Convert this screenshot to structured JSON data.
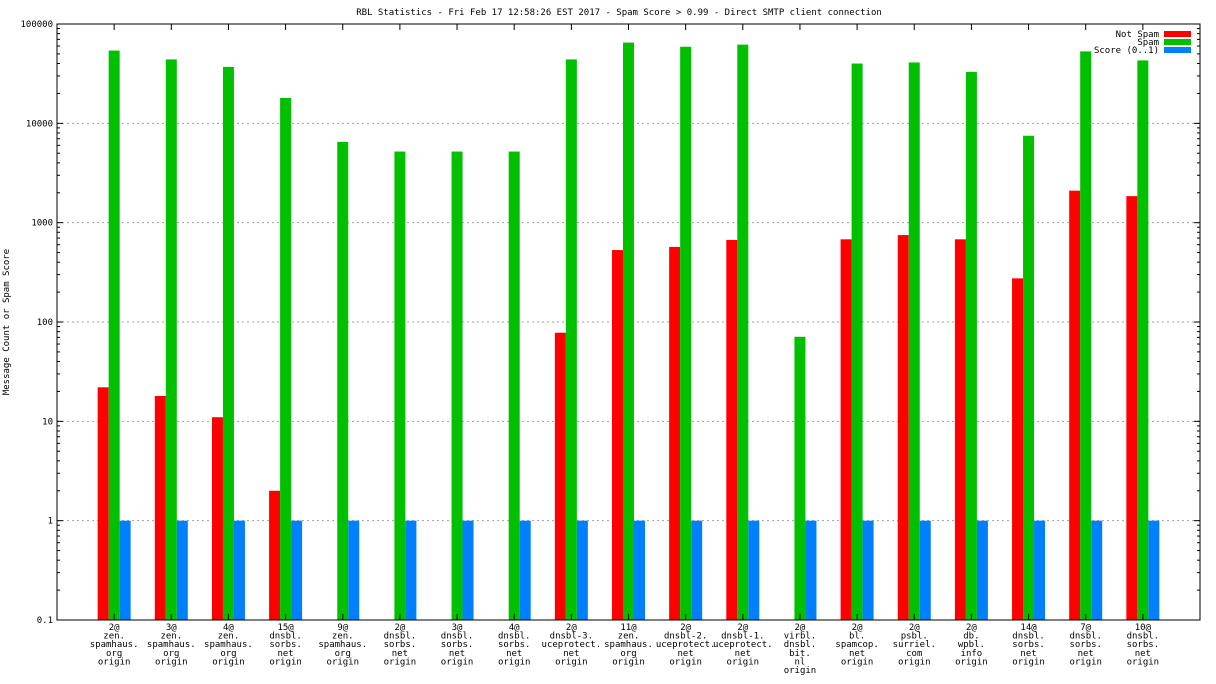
{
  "chart_data": {
    "type": "bar",
    "title": "RBL Statistics - Fri Feb 17 12:58:26 EST 2017 - Spam Score > 0.99 - Direct SMTP client connection",
    "ylabel": "Message Count or Spam Score",
    "xlabel": "",
    "y_scale": "log",
    "ylim": [
      0.1,
      100000
    ],
    "y_ticks": [
      "0.1",
      "1",
      "10",
      "100",
      "1000",
      "10000",
      "100000"
    ],
    "grid": true,
    "legend_position": "top-right",
    "categories": [
      [
        "2@",
        "zen.",
        "spamhaus.",
        "org",
        "origin"
      ],
      [
        "3@",
        "zen.",
        "spamhaus.",
        "org",
        "origin"
      ],
      [
        "4@",
        "zen.",
        "spamhaus.",
        "org",
        "origin"
      ],
      [
        "15@",
        "dnsbl.",
        "sorbs.",
        "net",
        "origin"
      ],
      [
        "9@",
        "zen.",
        "spamhaus.",
        "org",
        "origin"
      ],
      [
        "2@",
        "dnsbl.",
        "sorbs.",
        "net",
        "origin"
      ],
      [
        "3@",
        "dnsbl.",
        "sorbs.",
        "net",
        "origin"
      ],
      [
        "4@",
        "dnsbl.",
        "sorbs.",
        "net",
        "origin"
      ],
      [
        "2@",
        "dnsbl-3.",
        "uceprotect.",
        "net",
        "origin"
      ],
      [
        "11@",
        "zen.",
        "spamhaus.",
        "org",
        "origin"
      ],
      [
        "2@",
        "dnsbl-2.",
        "uceprotect.",
        "net",
        "origin"
      ],
      [
        "2@",
        "dnsbl-1.",
        "uceprotect.",
        "net",
        "origin"
      ],
      [
        "2@",
        "virbl.",
        "dnsbl.",
        "bit.",
        "nl",
        "origin"
      ],
      [
        "2@",
        "bl.",
        "spamcop.",
        "net",
        "origin"
      ],
      [
        "2@",
        "psbl.",
        "surriel.",
        "com",
        "origin"
      ],
      [
        "2@",
        "db.",
        "wpbl.",
        "info",
        "origin"
      ],
      [
        "14@",
        "dnsbl.",
        "sorbs.",
        "net",
        "origin"
      ],
      [
        "7@",
        "dnsbl.",
        "sorbs.",
        "net",
        "origin"
      ],
      [
        "10@",
        "dnsbl.",
        "sorbs.",
        "net",
        "origin"
      ]
    ],
    "series": [
      {
        "name": "Not Spam",
        "color": "#ff0000",
        "values": [
          22,
          18,
          11,
          2,
          null,
          null,
          null,
          null,
          78,
          530,
          570,
          670,
          null,
          680,
          750,
          680,
          275,
          2100,
          1850
        ]
      },
      {
        "name": "Spam",
        "color": "#00c000",
        "values": [
          54000,
          44000,
          37000,
          18000,
          6500,
          5200,
          5200,
          5200,
          44000,
          65000,
          59000,
          62000,
          71,
          40000,
          41000,
          33000,
          7500,
          53000,
          43000
        ]
      },
      {
        "name": "Score (0..1)",
        "color": "#0080ff",
        "values": [
          1,
          1,
          1,
          1,
          1,
          1,
          1,
          1,
          1,
          1,
          1,
          1,
          1,
          1,
          1,
          1,
          1,
          1,
          1
        ]
      }
    ]
  }
}
